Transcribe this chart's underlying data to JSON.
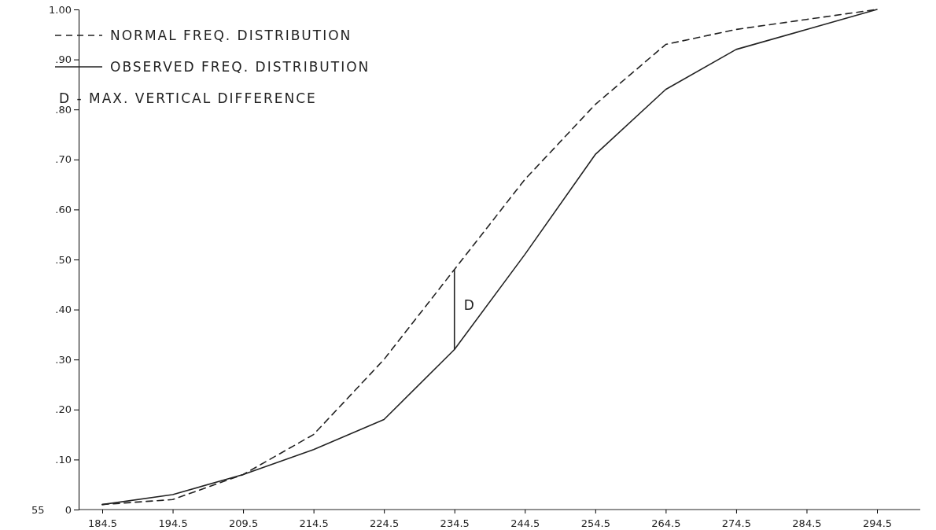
{
  "chart_data": {
    "type": "line",
    "categories": [
      "184.5",
      "194.5",
      "209.5",
      "214.5",
      "224.5",
      "234.5",
      "244.5",
      "254.5",
      "264.5",
      "274.5",
      "284.5",
      "294.5"
    ],
    "series": [
      {
        "name": "NORMAL FREQ. DISTRIBUTION",
        "color": "#222222",
        "line_style": "dashed",
        "values": [
          0.01,
          0.02,
          0.07,
          0.15,
          0.3,
          0.48,
          0.66,
          0.81,
          0.93,
          0.96,
          0.98,
          1.0
        ]
      },
      {
        "name": "OBSERVED FREQ. DISTRIBUTION",
        "color": "#222222",
        "line_style": "solid",
        "values": [
          0.01,
          0.03,
          0.07,
          0.12,
          0.18,
          0.32,
          0.51,
          0.71,
          0.84,
          0.92,
          0.96,
          1.0
        ]
      }
    ],
    "ylim": [
      0,
      1.0
    ],
    "yticks": [
      {
        "value": 0,
        "label": "0"
      },
      {
        "value": 0.1,
        "label": ".10"
      },
      {
        "value": 0.2,
        "label": ".20"
      },
      {
        "value": 0.3,
        "label": ".30"
      },
      {
        "value": 0.4,
        "label": ".40"
      },
      {
        "value": 0.5,
        "label": ".50"
      },
      {
        "value": 0.6,
        "label": ".60"
      },
      {
        "value": 0.7,
        "label": ".70"
      },
      {
        "value": 0.8,
        "label": ".80"
      },
      {
        "value": 0.9,
        "label": ".90"
      },
      {
        "value": 1.0,
        "label": "1.00"
      }
    ],
    "legend": "top left",
    "grid": false,
    "marker": "none",
    "annotations": [
      "D",
      "D - MAX. VERTICAL DIFFERENCE",
      "55"
    ]
  }
}
